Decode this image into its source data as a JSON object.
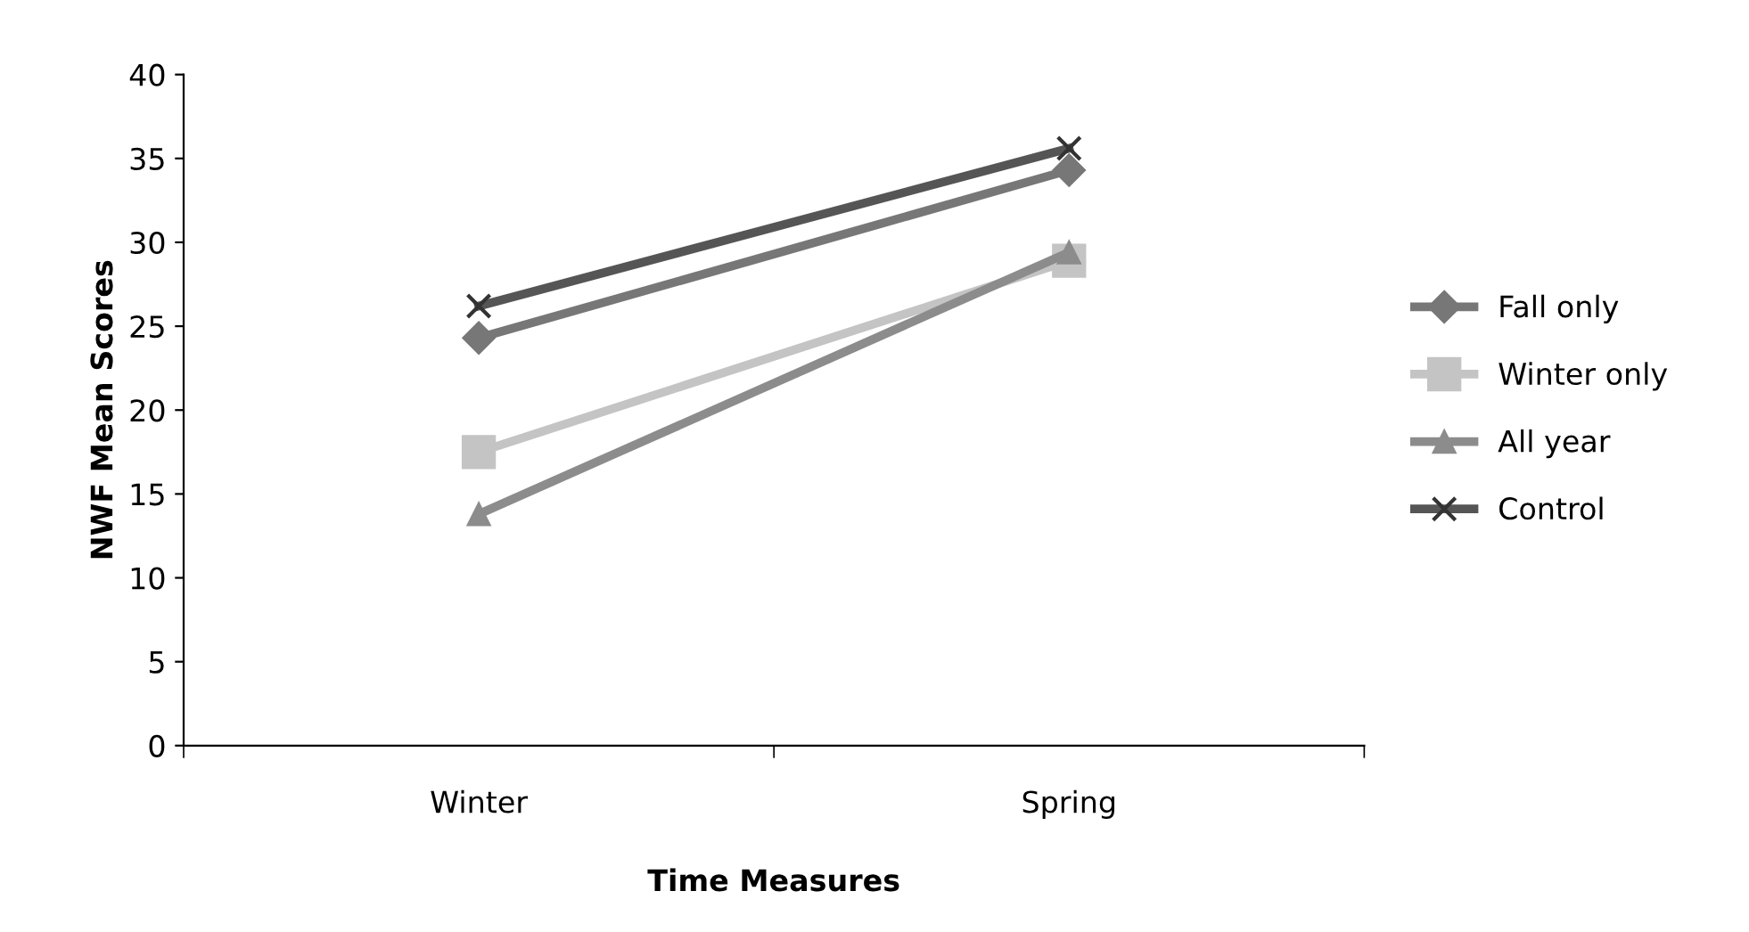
{
  "chart_data": {
    "type": "line",
    "xlabel": "Time Measures",
    "ylabel": "NWF Mean Scores",
    "categories": [
      "Winter",
      "Spring"
    ],
    "series": [
      {
        "name": "Fall only",
        "color": "#777777",
        "marker": "diamond",
        "values": [
          24.3,
          34.3
        ]
      },
      {
        "name": "Winter only",
        "color": "#c4c4c4",
        "marker": "square",
        "values": [
          17.5,
          28.9
        ]
      },
      {
        "name": "All year",
        "color": "#8c8c8c",
        "marker": "triangle",
        "values": [
          13.8,
          29.4
        ]
      },
      {
        "name": "Control",
        "color": "#555555",
        "marker": "cross",
        "values": [
          26.2,
          35.6
        ]
      }
    ],
    "ylim": [
      0,
      40
    ],
    "yticks": [
      0,
      5,
      10,
      15,
      20,
      25,
      30,
      35,
      40
    ],
    "grid": false,
    "legend": "right",
    "line_style": "solid"
  }
}
